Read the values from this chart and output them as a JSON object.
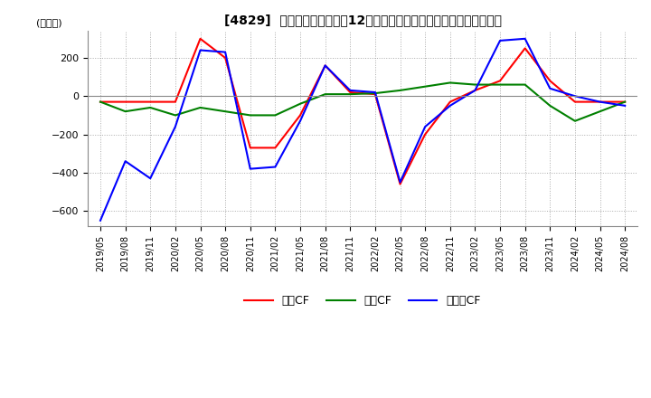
{
  "title": "[4829]  キャッシュフローの12か月移動合計の対前年同期増減額の推移",
  "ylabel": "(百万円)",
  "ylim": [
    -680,
    340
  ],
  "yticks": [
    200,
    0,
    -200,
    -400,
    -600
  ],
  "legend_labels": [
    "営業CF",
    "投資CF",
    "フリーCF"
  ],
  "line_colors": [
    "#ff0000",
    "#008000",
    "#0000ff"
  ],
  "dates": [
    "2019/05",
    "2019/08",
    "2019/11",
    "2020/02",
    "2020/05",
    "2020/08",
    "2020/11",
    "2021/02",
    "2021/05",
    "2021/08",
    "2021/11",
    "2022/02",
    "2022/05",
    "2022/08",
    "2022/11",
    "2023/02",
    "2023/05",
    "2023/08",
    "2023/11",
    "2024/02",
    "2024/05",
    "2024/08"
  ],
  "operating_cf": [
    -30,
    -30,
    -30,
    -30,
    300,
    200,
    -270,
    -270,
    -100,
    160,
    20,
    10,
    -460,
    -200,
    -30,
    30,
    80,
    250,
    80,
    -30,
    -30,
    -30
  ],
  "investing_cf": [
    -30,
    -80,
    -60,
    -100,
    -60,
    -80,
    -100,
    -100,
    -40,
    10,
    10,
    15,
    30,
    50,
    70,
    60,
    60,
    60,
    -50,
    -130,
    -80,
    -30
  ],
  "free_cf": [
    -650,
    -340,
    -430,
    -160,
    240,
    230,
    -380,
    -370,
    -130,
    160,
    30,
    20,
    -450,
    -160,
    -50,
    30,
    290,
    300,
    40,
    0,
    -30,
    -50
  ]
}
